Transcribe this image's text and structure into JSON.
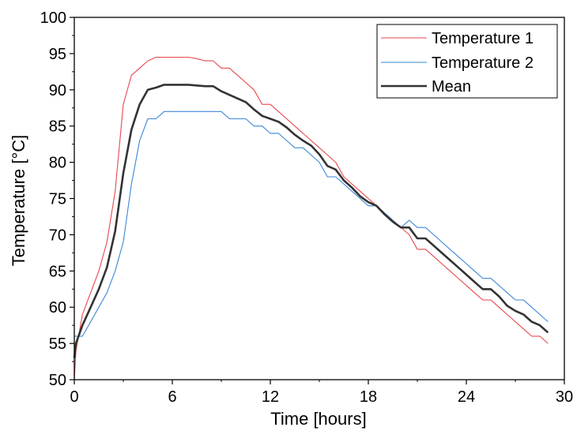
{
  "chart_data": {
    "type": "line",
    "title": "",
    "xlabel": "Time [hours]",
    "ylabel": "Temperature [°C]",
    "xlim": [
      0,
      30
    ],
    "ylim": [
      50,
      100
    ],
    "xticks": [
      0,
      6,
      12,
      18,
      24,
      30
    ],
    "yticks": [
      50,
      55,
      60,
      65,
      70,
      75,
      80,
      85,
      90,
      95,
      100
    ],
    "grid": false,
    "legend_position": "top-right",
    "series": [
      {
        "name": "Temperature 1",
        "color": "#e8474c",
        "width": 1.1,
        "x": [
          0,
          0.1,
          0.5,
          1.0,
          1.5,
          2.0,
          2.5,
          3.0,
          3.5,
          4.0,
          4.5,
          5.0,
          5.5,
          6.0,
          6.5,
          7.0,
          7.5,
          8.0,
          8.5,
          9.0,
          9.5,
          10.0,
          10.5,
          11.0,
          11.5,
          12.0,
          12.5,
          13.0,
          13.5,
          14.0,
          14.5,
          15.0,
          15.5,
          16.0,
          16.5,
          17.0,
          17.5,
          18.0,
          18.5,
          19.0,
          19.5,
          20.0,
          20.5,
          21.0,
          21.5,
          22.0,
          22.5,
          23.0,
          23.5,
          24.0,
          24.5,
          25.0,
          25.5,
          26.0,
          26.5,
          27.0,
          27.5,
          28.0,
          28.5,
          29.0
        ],
        "y": [
          50,
          54,
          59,
          62,
          65,
          69,
          76,
          88,
          92,
          93,
          94,
          94.5,
          94.5,
          94.5,
          94.5,
          94.5,
          94.3,
          94,
          94,
          93,
          93,
          92,
          91,
          90,
          88,
          88,
          87,
          86,
          85,
          84,
          83,
          82,
          81,
          80,
          78,
          77,
          76,
          75,
          74,
          73,
          72,
          71,
          70,
          68,
          68,
          67,
          66,
          65,
          64,
          63,
          62,
          61,
          61,
          60,
          59,
          58,
          57,
          56,
          56,
          55
        ]
      },
      {
        "name": "Temperature 2",
        "color": "#3a87d6",
        "width": 1.1,
        "x": [
          0,
          0.5,
          1.0,
          1.5,
          2.0,
          2.5,
          3.0,
          3.5,
          4.0,
          4.5,
          5.0,
          5.5,
          6.0,
          6.5,
          7.0,
          7.5,
          8.0,
          8.5,
          9.0,
          9.5,
          10.0,
          10.5,
          11.0,
          11.5,
          12.0,
          12.5,
          13.0,
          13.5,
          14.0,
          14.5,
          15.0,
          15.5,
          16.0,
          16.5,
          17.0,
          17.5,
          18.0,
          18.5,
          19.0,
          19.5,
          20.0,
          20.5,
          21.0,
          21.5,
          22.0,
          22.5,
          23.0,
          23.5,
          24.0,
          24.5,
          25.0,
          25.5,
          26.0,
          26.5,
          27.0,
          27.5,
          28.0,
          28.5,
          29.0
        ],
        "y": [
          56,
          56,
          58,
          60,
          62,
          65,
          69,
          77,
          83,
          86,
          86,
          87,
          87,
          87,
          87,
          87,
          87,
          87,
          87,
          86,
          86,
          86,
          85,
          85,
          84,
          84,
          83,
          82,
          82,
          81,
          80,
          78,
          78,
          77,
          76,
          75,
          74,
          74,
          73,
          72,
          71,
          72,
          71,
          71,
          70,
          69,
          68,
          67,
          66,
          65,
          64,
          64,
          63,
          62,
          61,
          61,
          60,
          59,
          58
        ]
      },
      {
        "name": "Mean",
        "color": "#333333",
        "width": 2.6,
        "x": [
          0,
          0.1,
          0.5,
          1.0,
          1.5,
          2.0,
          2.5,
          3.0,
          3.5,
          4.0,
          4.5,
          5.0,
          5.5,
          6.0,
          6.5,
          7.0,
          7.5,
          8.0,
          8.5,
          9.0,
          9.5,
          10.0,
          10.5,
          11.0,
          11.5,
          12.0,
          12.5,
          13.0,
          13.5,
          14.0,
          14.5,
          15.0,
          15.5,
          16.0,
          16.5,
          17.0,
          17.5,
          18.0,
          18.5,
          19.0,
          19.5,
          20.0,
          20.5,
          21.0,
          21.5,
          22.0,
          22.5,
          23.0,
          23.5,
          24.0,
          24.5,
          25.0,
          25.5,
          26.0,
          26.5,
          27.0,
          27.5,
          28.0,
          28.5,
          29.0
        ],
        "y": [
          53,
          55,
          57.5,
          60,
          62.5,
          65.5,
          70.5,
          78.5,
          84.5,
          88,
          90,
          90.3,
          90.7,
          90.7,
          90.7,
          90.7,
          90.6,
          90.5,
          90.5,
          89.8,
          89.3,
          88.8,
          88.3,
          87.3,
          86.4,
          86,
          85.6,
          84.8,
          83.8,
          83,
          82.3,
          81.1,
          79.5,
          79,
          77.5,
          76.5,
          75.3,
          74.5,
          74,
          72.8,
          71.8,
          71,
          71,
          69.5,
          69.5,
          68.5,
          67.5,
          66.5,
          65.5,
          64.5,
          63.5,
          62.5,
          62.5,
          61.5,
          60.2,
          59.5,
          59,
          58,
          57.5,
          56.5
        ]
      }
    ]
  }
}
